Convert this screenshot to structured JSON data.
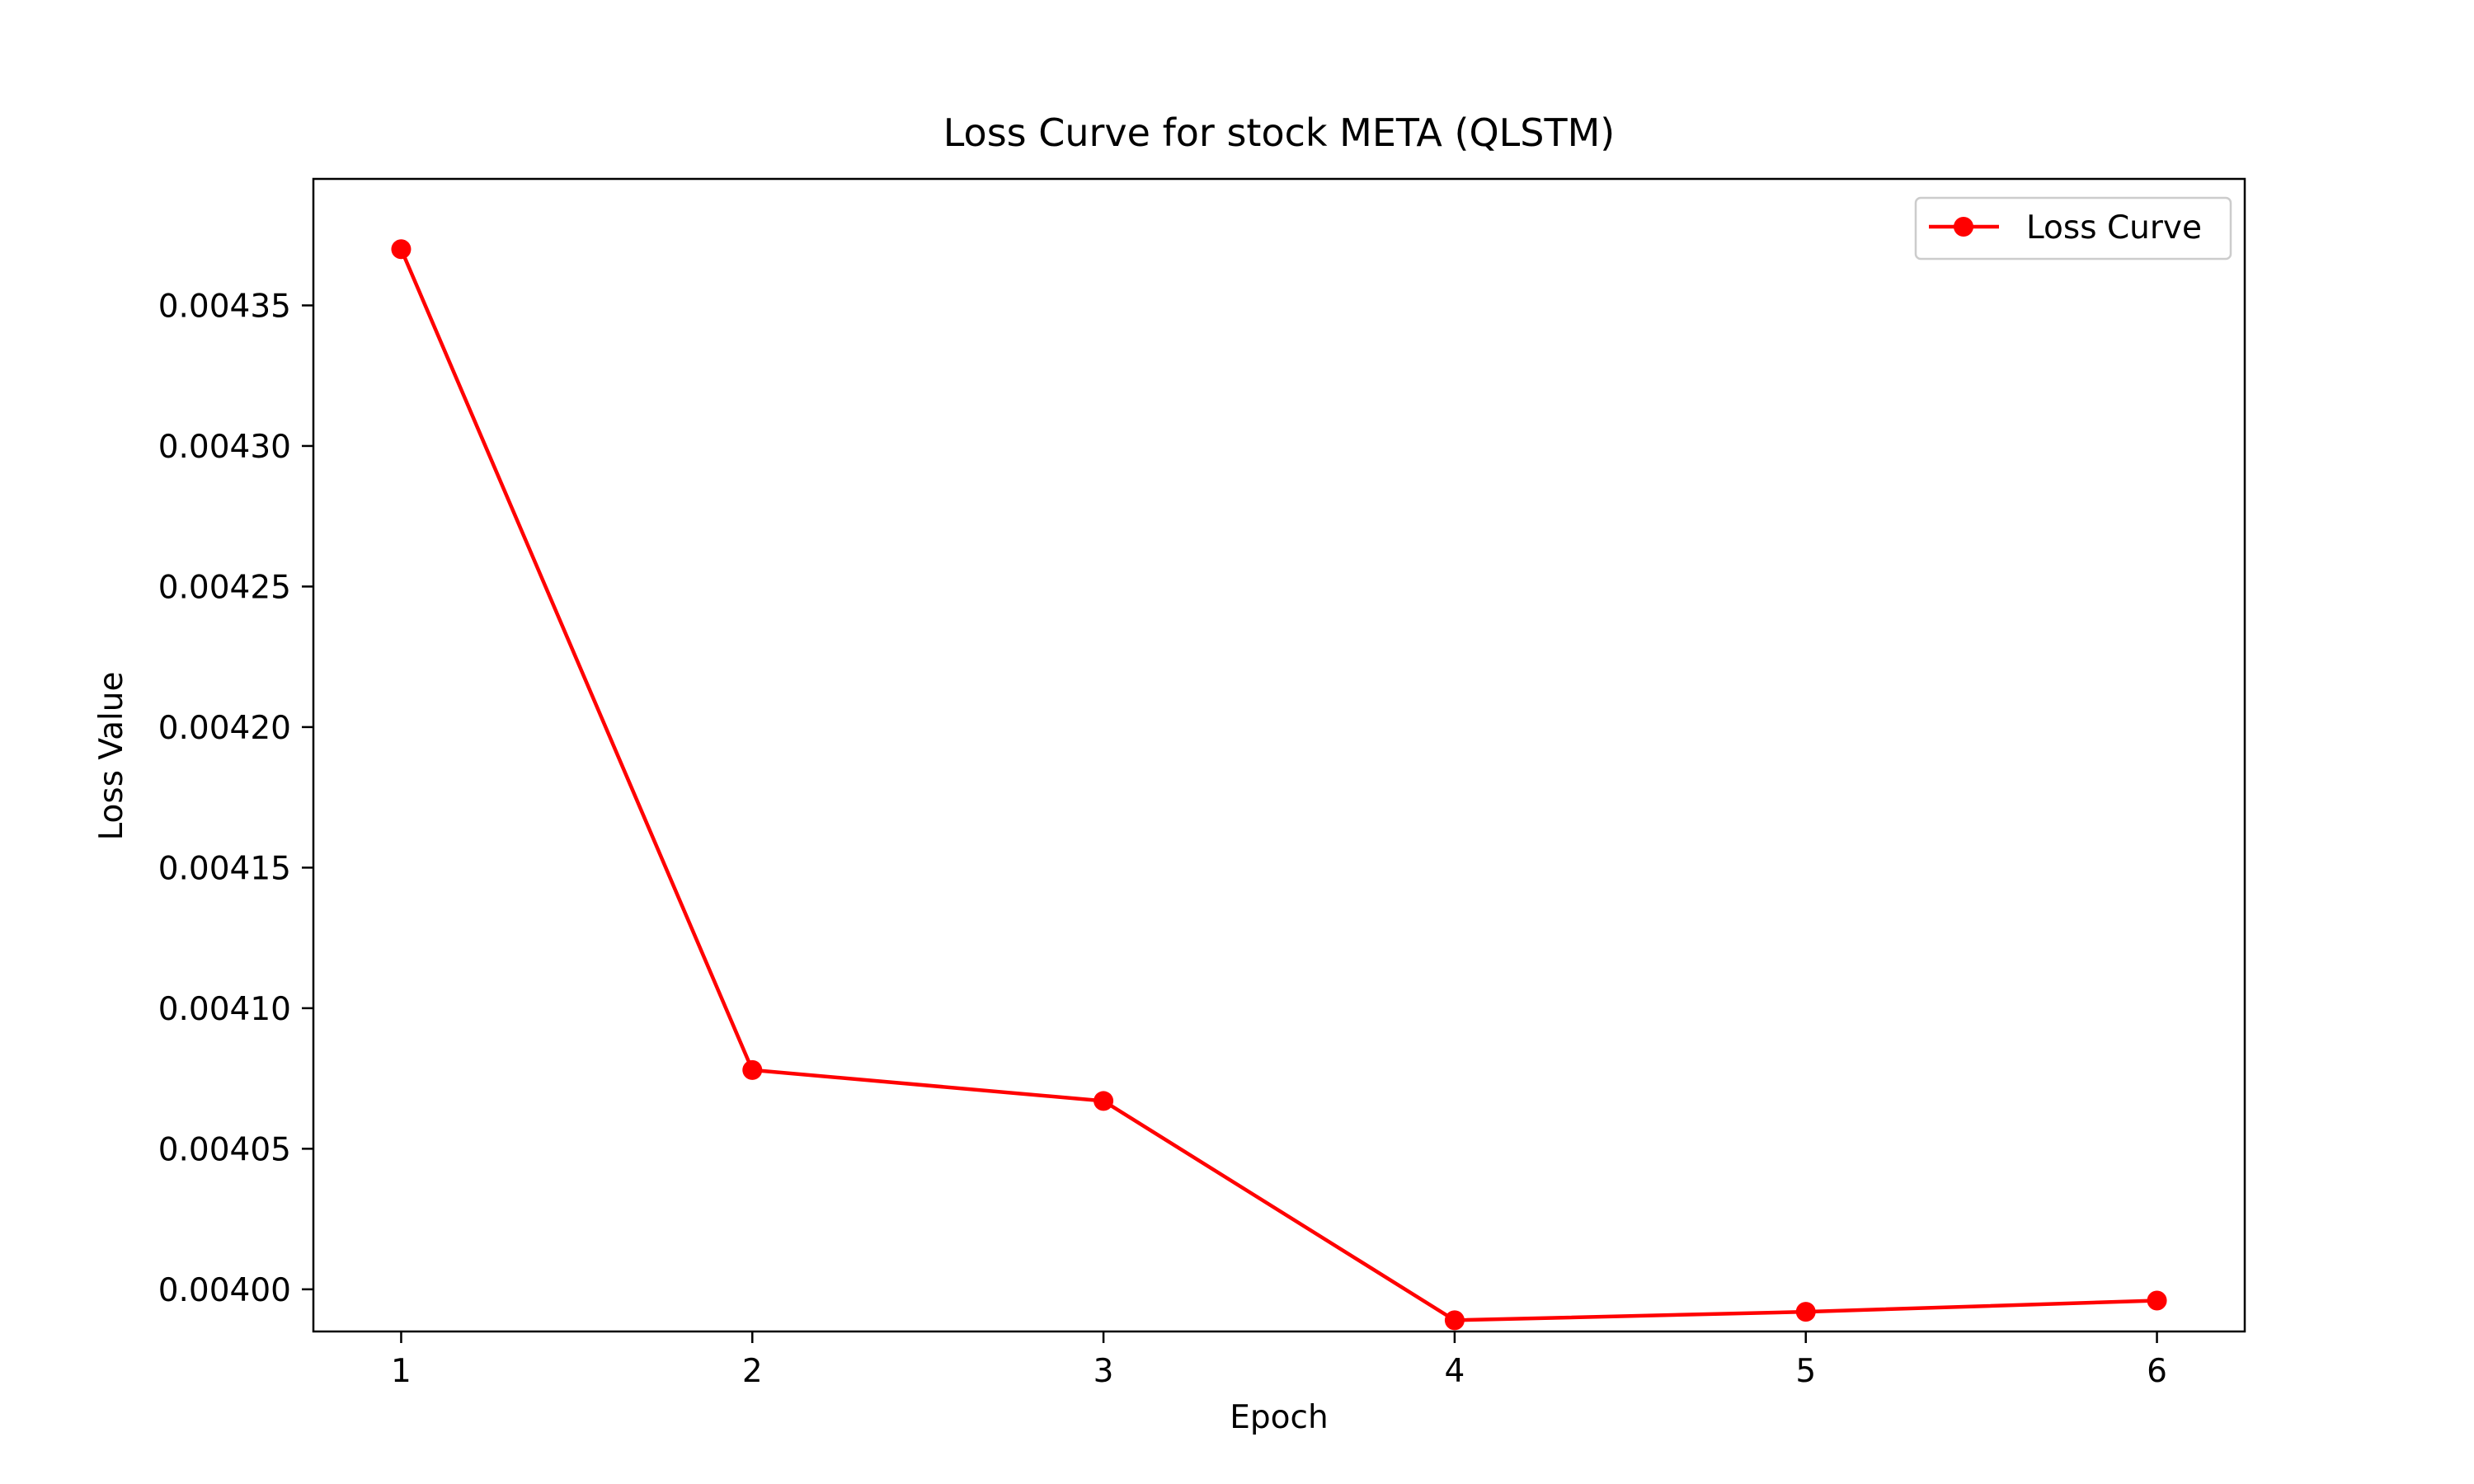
{
  "chart_data": {
    "type": "line",
    "title": "Loss Curve for stock META (QLSTM)",
    "xlabel": "Epoch",
    "ylabel": "Loss Value",
    "x": [
      1,
      2,
      3,
      4,
      5,
      6
    ],
    "x_ticks": [
      "1",
      "2",
      "3",
      "4",
      "5",
      "6"
    ],
    "y_ticks": [
      0.004,
      0.00405,
      0.0041,
      0.00415,
      0.0042,
      0.00425,
      0.0043,
      0.00435
    ],
    "y_tick_labels": [
      "0.00400",
      "0.00405",
      "0.00410",
      "0.00415",
      "0.00420",
      "0.00425",
      "0.00430",
      "0.00435"
    ],
    "xlim": [
      0.75,
      6.25
    ],
    "ylim": [
      0.003985,
      0.004395
    ],
    "grid": false,
    "legend_position": "top-right",
    "series": [
      {
        "name": "Loss Curve",
        "color": "#ff0000",
        "marker": "circle",
        "values": [
          0.00437,
          0.004078,
          0.004067,
          0.003989,
          0.003992,
          0.003996
        ]
      }
    ]
  }
}
